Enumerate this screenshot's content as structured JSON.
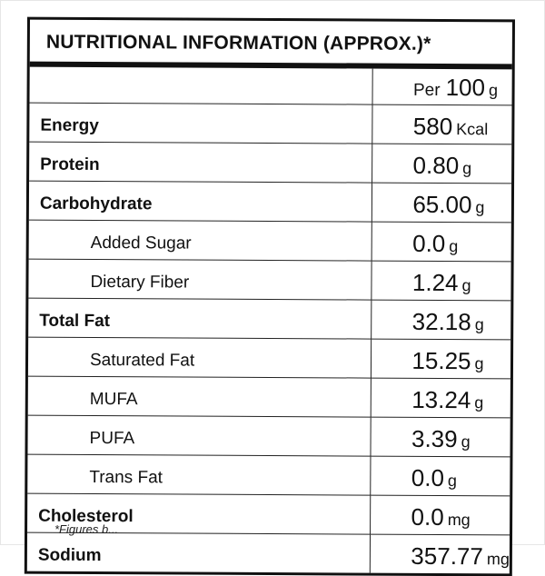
{
  "title": "NUTRITIONAL INFORMATION (APPROX.)*",
  "header": {
    "per_label": "Per",
    "per_amount": "100",
    "per_unit": "g"
  },
  "rows": [
    {
      "name": "Energy",
      "value": "580",
      "unit": "Kcal",
      "level": "main"
    },
    {
      "name": "Protein",
      "value": "0.80",
      "unit": "g",
      "level": "main"
    },
    {
      "name": "Carbohydrate",
      "value": "65.00",
      "unit": "g",
      "level": "main"
    },
    {
      "name": "Added Sugar",
      "value": "0.0",
      "unit": "g",
      "level": "sub"
    },
    {
      "name": "Dietary Fiber",
      "value": "1.24",
      "unit": "g",
      "level": "sub"
    },
    {
      "name": "Total Fat",
      "value": "32.18",
      "unit": "g",
      "level": "main"
    },
    {
      "name": "Saturated Fat",
      "value": "15.25",
      "unit": "g",
      "level": "sub"
    },
    {
      "name": "MUFA",
      "value": "13.24",
      "unit": "g",
      "level": "sub"
    },
    {
      "name": "PUFA",
      "value": "3.39",
      "unit": "g",
      "level": "sub"
    },
    {
      "name": "Trans Fat",
      "value": "0.0",
      "unit": "g",
      "level": "sub"
    },
    {
      "name": "Cholesterol",
      "value": "0.0",
      "unit": "mg",
      "level": "main"
    },
    {
      "name": "Sodium",
      "value": "357.77",
      "unit": "mg",
      "level": "main"
    }
  ],
  "footnote": "*Figures b..."
}
